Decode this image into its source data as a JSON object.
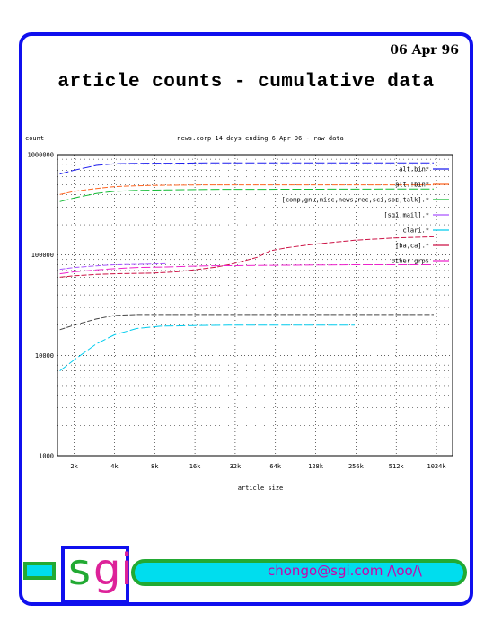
{
  "page": {
    "date": "06 Apr 96",
    "title": "article counts - cumulative data"
  },
  "chart_data": {
    "type": "line",
    "title": "news.corp 14 days ending 6 Apr 96 - raw data",
    "ylabel": "count",
    "xlabel": "article size",
    "x_scale": "log2",
    "y_scale": "log10",
    "xlim": [
      1536,
      1384000
    ],
    "ylim": [
      1000,
      1000000
    ],
    "x_ticks": [
      "2k",
      "4k",
      "8k",
      "16k",
      "32k",
      "64k",
      "128k",
      "256k",
      "512k",
      "1024k"
    ],
    "y_ticks": [
      "1000",
      "10000",
      "100000",
      "1000000"
    ],
    "grid": true,
    "legend_position": "right",
    "series": [
      {
        "name": "alt.bin*",
        "color": "#1a1aee",
        "points": [
          [
            1600,
            640000
          ],
          [
            2048,
            700000
          ],
          [
            3000,
            780000
          ],
          [
            4096,
            810000
          ],
          [
            7000,
            820000
          ],
          [
            11000,
            820000
          ],
          [
            20000,
            825000
          ],
          [
            1000000,
            825000
          ]
        ]
      },
      {
        "name": "alt.!bin*",
        "color": "#ff6622",
        "points": [
          [
            1600,
            400000
          ],
          [
            2048,
            430000
          ],
          [
            3000,
            460000
          ],
          [
            4096,
            480000
          ],
          [
            6000,
            490000
          ],
          [
            9000,
            495000
          ],
          [
            20000,
            500000
          ],
          [
            1000000,
            500000
          ]
        ]
      },
      {
        "name": "[comp,gnu,misc,news,rec,sci,soc,talk].*",
        "color": "#11bb33",
        "points": [
          [
            1600,
            340000
          ],
          [
            2048,
            370000
          ],
          [
            3000,
            410000
          ],
          [
            4096,
            430000
          ],
          [
            6000,
            440000
          ],
          [
            10000,
            445000
          ],
          [
            20000,
            450000
          ],
          [
            1000000,
            455000
          ]
        ]
      },
      {
        "name": "[sgi,mail].*",
        "color": "#aa55ff",
        "points": [
          [
            1600,
            72000
          ],
          [
            2048,
            75000
          ],
          [
            3000,
            78000
          ],
          [
            4096,
            80000
          ],
          [
            7000,
            81000
          ],
          [
            10000,
            82000
          ]
        ]
      },
      {
        "name": "clari.*",
        "color": "#00ccee",
        "points": [
          [
            1600,
            7000
          ],
          [
            2048,
            9000
          ],
          [
            3000,
            13000
          ],
          [
            4096,
            16000
          ],
          [
            6000,
            18500
          ],
          [
            9000,
            19500
          ],
          [
            16000,
            19800
          ],
          [
            32000,
            20000
          ],
          [
            64000,
            20000
          ],
          [
            128000,
            20000
          ],
          [
            256000,
            20000
          ]
        ]
      },
      {
        "name": "[ba,ca].*",
        "color": "#cc1144",
        "points": [
          [
            1600,
            60000
          ],
          [
            2048,
            62000
          ],
          [
            3000,
            64000
          ],
          [
            4096,
            65000
          ],
          [
            8000,
            66000
          ],
          [
            12000,
            68000
          ],
          [
            16000,
            71000
          ],
          [
            24000,
            76000
          ],
          [
            32000,
            82000
          ],
          [
            48000,
            95000
          ],
          [
            60000,
            110000
          ],
          [
            80000,
            118000
          ],
          [
            128000,
            128000
          ],
          [
            256000,
            140000
          ],
          [
            512000,
            148000
          ],
          [
            1000000,
            152000
          ]
        ]
      },
      {
        "name": "other grps",
        "color": "#ee22cc",
        "points": [
          [
            1600,
            65000
          ],
          [
            2048,
            68000
          ],
          [
            3000,
            71000
          ],
          [
            4096,
            73000
          ],
          [
            6000,
            75000
          ],
          [
            10000,
            76000
          ],
          [
            20000,
            78000
          ],
          [
            64000,
            79000
          ],
          [
            256000,
            80000
          ],
          [
            1000000,
            80000
          ]
        ]
      },
      {
        "name": "",
        "color": "#444444",
        "points": [
          [
            1600,
            18000
          ],
          [
            2048,
            20000
          ],
          [
            3000,
            23000
          ],
          [
            4096,
            25000
          ],
          [
            6000,
            25500
          ],
          [
            16000,
            25500
          ],
          [
            64000,
            25500
          ],
          [
            256000,
            25500
          ],
          [
            1000000,
            25500
          ]
        ]
      }
    ]
  },
  "footer": {
    "brand_s": "s",
    "brand_gi": "gi",
    "email": "chongo@sgi.com  /\\oo/\\"
  }
}
